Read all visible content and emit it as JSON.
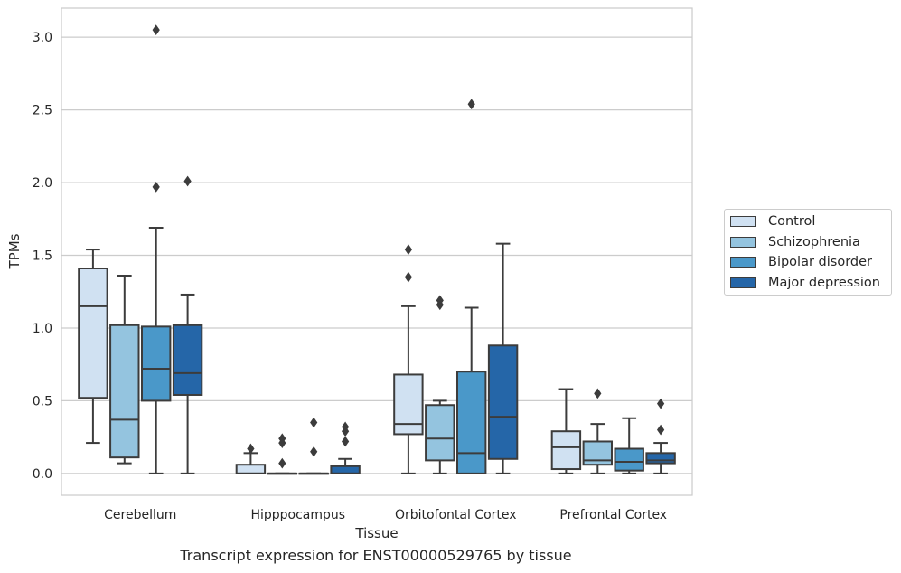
{
  "chart_data": {
    "type": "box",
    "title": "Transcript expression for ENST00000529765 by tissue",
    "xlabel": "Tissue",
    "ylabel": "TPMs",
    "ylim": [
      -0.15,
      3.2
    ],
    "yticks": [
      "0.0",
      "0.5",
      "1.0",
      "1.5",
      "2.0",
      "2.5",
      "3.0"
    ],
    "categories": [
      "Cerebellum",
      "Hipppocampus",
      "Orbitofontal Cortex",
      "Prefrontal Cortex"
    ],
    "grid": true,
    "legend_position": "right",
    "colors": [
      "#d0e1f2",
      "#94c4df",
      "#4a98c9",
      "#2566a8"
    ],
    "series": [
      {
        "name": "Control",
        "boxes": [
          {
            "whisker_low": 0.21,
            "q1": 0.52,
            "median": 1.15,
            "q3": 1.41,
            "whisker_high": 1.54,
            "outliers": []
          },
          {
            "whisker_low": 0.0,
            "q1": 0.0,
            "median": 0.0,
            "q3": 0.06,
            "whisker_high": 0.14,
            "outliers": [
              0.17
            ]
          },
          {
            "whisker_low": 0.0,
            "q1": 0.27,
            "median": 0.34,
            "q3": 0.68,
            "whisker_high": 1.15,
            "outliers": [
              1.35,
              1.54
            ]
          },
          {
            "whisker_low": 0.0,
            "q1": 0.03,
            "median": 0.18,
            "q3": 0.29,
            "whisker_high": 0.58,
            "outliers": []
          }
        ]
      },
      {
        "name": "Schizophrenia",
        "boxes": [
          {
            "whisker_low": 0.07,
            "q1": 0.11,
            "median": 0.37,
            "q3": 1.02,
            "whisker_high": 1.36,
            "outliers": []
          },
          {
            "whisker_low": 0.0,
            "q1": 0.0,
            "median": 0.0,
            "q3": 0.0,
            "whisker_high": 0.0,
            "outliers": [
              0.07,
              0.21,
              0.24
            ]
          },
          {
            "whisker_low": 0.0,
            "q1": 0.09,
            "median": 0.24,
            "q3": 0.47,
            "whisker_high": 0.5,
            "outliers": [
              1.16,
              1.19
            ]
          },
          {
            "whisker_low": 0.0,
            "q1": 0.06,
            "median": 0.09,
            "q3": 0.22,
            "whisker_high": 0.34,
            "outliers": [
              0.55
            ]
          }
        ]
      },
      {
        "name": "Bipolar disorder",
        "boxes": [
          {
            "whisker_low": 0.0,
            "q1": 0.5,
            "median": 0.72,
            "q3": 1.01,
            "whisker_high": 1.69,
            "outliers": [
              1.97,
              3.05
            ]
          },
          {
            "whisker_low": 0.0,
            "q1": 0.0,
            "median": 0.0,
            "q3": 0.0,
            "whisker_high": 0.0,
            "outliers": [
              0.15,
              0.35
            ]
          },
          {
            "whisker_low": 0.0,
            "q1": 0.0,
            "median": 0.14,
            "q3": 0.7,
            "whisker_high": 1.14,
            "outliers": [
              2.54
            ]
          },
          {
            "whisker_low": 0.0,
            "q1": 0.02,
            "median": 0.08,
            "q3": 0.17,
            "whisker_high": 0.38,
            "outliers": []
          }
        ]
      },
      {
        "name": "Major depression",
        "boxes": [
          {
            "whisker_low": 0.0,
            "q1": 0.54,
            "median": 0.69,
            "q3": 1.02,
            "whisker_high": 1.23,
            "outliers": [
              2.01
            ]
          },
          {
            "whisker_low": 0.0,
            "q1": 0.0,
            "median": 0.0,
            "q3": 0.05,
            "whisker_high": 0.1,
            "outliers": [
              0.22,
              0.29,
              0.32
            ]
          },
          {
            "whisker_low": 0.0,
            "q1": 0.1,
            "median": 0.39,
            "q3": 0.88,
            "whisker_high": 1.58,
            "outliers": []
          },
          {
            "whisker_low": 0.0,
            "q1": 0.07,
            "median": 0.09,
            "q3": 0.14,
            "whisker_high": 0.21,
            "outliers": [
              0.3,
              0.48
            ]
          }
        ]
      }
    ]
  }
}
